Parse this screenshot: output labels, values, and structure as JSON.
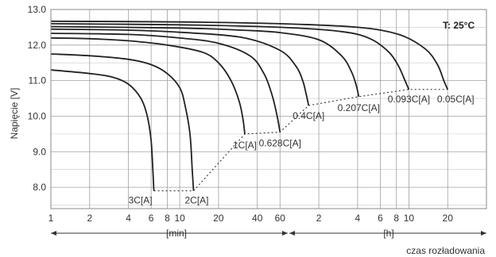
{
  "chart_data": {
    "type": "line",
    "title": "",
    "ylabel": "Napięcie [V]",
    "xlabel": "czas rozładowania",
    "temperature_label": "T: 25°C",
    "ylim": [
      7.4,
      13.0
    ],
    "x_axis_scale": "log",
    "x_unit_labels": [
      "[min]",
      "[h]"
    ],
    "y_ticks": [
      {
        "value": 8.0,
        "label": "8.0"
      },
      {
        "value": 9.0,
        "label": "9.0"
      },
      {
        "value": 10.0,
        "label": "10.0"
      },
      {
        "value": 11.0,
        "label": "11.0"
      },
      {
        "value": 12.0,
        "label": "12.0"
      },
      {
        "value": 13.0,
        "label": "13.0"
      }
    ],
    "x_ticks": [
      {
        "minutes": 1,
        "label": "1"
      },
      {
        "minutes": 2,
        "label": "2"
      },
      {
        "minutes": 4,
        "label": "4"
      },
      {
        "minutes": 6,
        "label": "6"
      },
      {
        "minutes": 8,
        "label": "8"
      },
      {
        "minutes": 10,
        "label": "10"
      },
      {
        "minutes": 20,
        "label": "20"
      },
      {
        "minutes": 40,
        "label": "40"
      },
      {
        "minutes": 60,
        "label": "60"
      },
      {
        "minutes": 120,
        "label": "2"
      },
      {
        "minutes": 240,
        "label": "4"
      },
      {
        "minutes": 360,
        "label": "6"
      },
      {
        "minutes": 480,
        "label": "8"
      },
      {
        "minutes": 600,
        "label": "10"
      },
      {
        "minutes": 1200,
        "label": "20"
      }
    ],
    "series": [
      {
        "name": "3C[A]",
        "x": [
          1,
          2,
          3,
          4,
          5,
          5.6,
          6,
          6.2,
          6.3
        ],
        "y": [
          11.3,
          11.2,
          11.1,
          10.9,
          10.5,
          10.0,
          9.3,
          8.4,
          7.9
        ]
      },
      {
        "name": "2C[A]",
        "x": [
          1,
          2,
          4,
          6,
          8,
          10,
          11,
          12,
          12.5,
          12.8
        ],
        "y": [
          11.75,
          11.7,
          11.6,
          11.45,
          11.2,
          10.8,
          10.3,
          9.5,
          8.5,
          7.9
        ]
      },
      {
        "name": "1C[A]",
        "x": [
          1,
          2,
          4,
          8,
          15,
          20,
          25,
          29,
          31,
          32
        ],
        "y": [
          12.2,
          12.18,
          12.12,
          12.0,
          11.8,
          11.5,
          11.0,
          10.4,
          9.9,
          9.5
        ]
      },
      {
        "name": "0.628C[A]",
        "x": [
          1,
          4,
          10,
          20,
          35,
          45,
          52,
          57,
          60
        ],
        "y": [
          12.33,
          12.3,
          12.2,
          12.05,
          11.7,
          11.2,
          10.6,
          10.0,
          9.55
        ]
      },
      {
        "name": "0.4C[A]",
        "x": [
          1,
          4,
          10,
          30,
          60,
          80,
          90,
          96,
          100
        ],
        "y": [
          12.45,
          12.42,
          12.36,
          12.22,
          11.85,
          11.4,
          11.0,
          10.6,
          10.3
        ]
      },
      {
        "name": "0.207C[A]",
        "x": [
          1,
          10,
          30,
          60,
          120,
          180,
          215,
          235,
          245
        ],
        "y": [
          12.52,
          12.48,
          12.42,
          12.35,
          12.15,
          11.7,
          11.25,
          10.85,
          10.55
        ]
      },
      {
        "name": "0.093C[A]",
        "x": [
          1,
          10,
          60,
          180,
          300,
          420,
          500,
          560,
          600
        ],
        "y": [
          12.6,
          12.57,
          12.5,
          12.38,
          12.18,
          11.8,
          11.4,
          11.0,
          10.75
        ]
      },
      {
        "name": "0.05C[A]",
        "x": [
          1,
          10,
          60,
          240,
          500,
          800,
          1000,
          1120,
          1200
        ],
        "y": [
          12.67,
          12.65,
          12.6,
          12.5,
          12.3,
          11.9,
          11.45,
          11.0,
          10.75
        ]
      }
    ],
    "final_voltage_line": {
      "x": [
        6.3,
        12.8,
        32,
        60,
        100,
        245,
        600,
        1200
      ],
      "y": [
        7.9,
        7.9,
        9.5,
        9.55,
        10.3,
        10.55,
        10.75,
        10.75
      ]
    },
    "grid": true,
    "legend": "none"
  }
}
